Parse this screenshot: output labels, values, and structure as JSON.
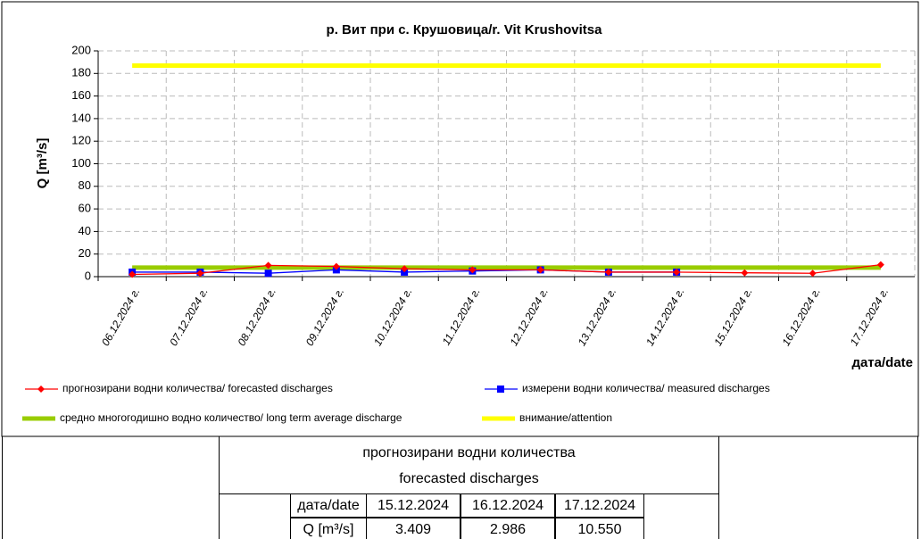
{
  "chart_data": {
    "type": "line",
    "title": "р. Вит при с. Крушовица/r. Vit Krushovitsa",
    "y_label": "Q [m³/s]",
    "x_label": "дата/date",
    "categories": [
      "06.12.2024 г.",
      "07.12.2024 г.",
      "08.12.2024 г.",
      "09.12.2024 г.",
      "10.12.2024 г.",
      "11.12.2024 г.",
      "12.12.2024 г.",
      "13.12.2024 г.",
      "14.12.2024 г.",
      "15.12.2024 г.",
      "16.12.2024 г.",
      "17.12.2024 г."
    ],
    "series": [
      {
        "name": "прогнозирани водни количества/ forecasted discharges",
        "color": "#ff0000",
        "marker": "diamond",
        "values": [
          2,
          3,
          10,
          9,
          7,
          6,
          6,
          4,
          4,
          3.409,
          2.986,
          10.55
        ]
      },
      {
        "name": "измерени водни количества/ measured discharges",
        "color": "#0000ff",
        "marker": "square",
        "values": [
          4,
          4,
          3,
          6,
          4,
          5,
          6,
          4,
          4,
          null,
          null,
          null
        ]
      },
      {
        "name": "средно многогодишно водно количество/ long term average discharge",
        "color": "#99cc00",
        "marker": "none",
        "values": [
          8,
          8,
          8,
          8,
          8,
          8,
          8,
          8,
          8,
          8,
          8,
          8
        ]
      },
      {
        "name": "внимание/attention",
        "color": "#ffff00",
        "marker": "none",
        "values": [
          187,
          187,
          187,
          187,
          187,
          187,
          187,
          187,
          187,
          187,
          187,
          187
        ]
      }
    ],
    "ylim": [
      0,
      200
    ],
    "yticks": [
      0,
      20,
      40,
      60,
      80,
      100,
      120,
      140,
      160,
      180,
      200
    ],
    "grid": true
  },
  "table": {
    "title": "прогнозирани водни количества",
    "subtitle": "forecasted discharges",
    "rows": [
      [
        "дата/date",
        "15.12.2024",
        "16.12.2024",
        "17.12.2024"
      ],
      [
        "Q [m³/s]",
        "3.409",
        "2.986",
        "10.550"
      ]
    ]
  }
}
